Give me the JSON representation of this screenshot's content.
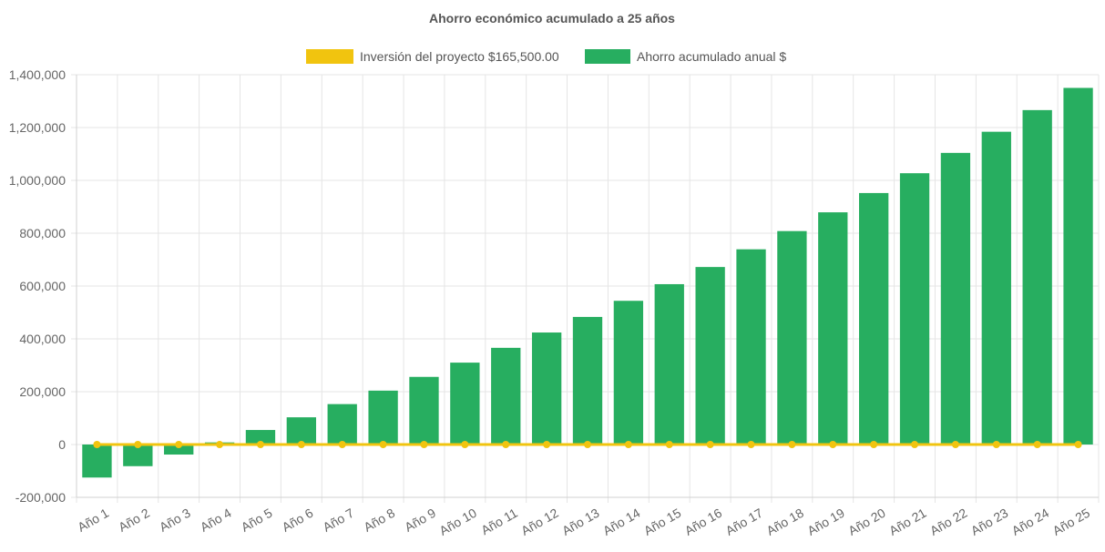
{
  "chart_data": {
    "type": "bar",
    "title": "Ahorro económico acumulado a 25 años",
    "categories": [
      "Año 1",
      "Año 2",
      "Año 3",
      "Año 4",
      "Año 5",
      "Año 6",
      "Año 7",
      "Año 8",
      "Año 9",
      "Año 10",
      "Año 11",
      "Año 12",
      "Año 13",
      "Año 14",
      "Año 15",
      "Año 16",
      "Año 17",
      "Año 18",
      "Año 19",
      "Año 20",
      "Año 21",
      "Año 22",
      "Año 23",
      "Año 24",
      "Año 25"
    ],
    "series": [
      {
        "name": "Inversión del proyecto $165,500.00",
        "type": "line",
        "color": "#f1c40f",
        "values": [
          0,
          0,
          0,
          0,
          0,
          0,
          0,
          0,
          0,
          0,
          0,
          0,
          0,
          0,
          0,
          0,
          0,
          0,
          0,
          0,
          0,
          0,
          0,
          0,
          0
        ]
      },
      {
        "name": "Ahorro acumulado anual $",
        "type": "bar",
        "color": "#27ae60",
        "values": [
          -125000,
          -82000,
          -38000,
          8000,
          55000,
          103000,
          153000,
          204000,
          256000,
          310000,
          366000,
          424000,
          483000,
          544000,
          607000,
          672000,
          739000,
          808000,
          879000,
          952000,
          1027000,
          1104000,
          1184000,
          1266000,
          1350000
        ]
      }
    ],
    "yticks": [
      "1,400,000",
      "1,200,000",
      "1,000,000",
      "800,000",
      "600,000",
      "400,000",
      "200,000",
      "0",
      "-200,000"
    ],
    "ylim": [
      -200000,
      1400000
    ],
    "legend_position": "top-center",
    "grid": true
  }
}
